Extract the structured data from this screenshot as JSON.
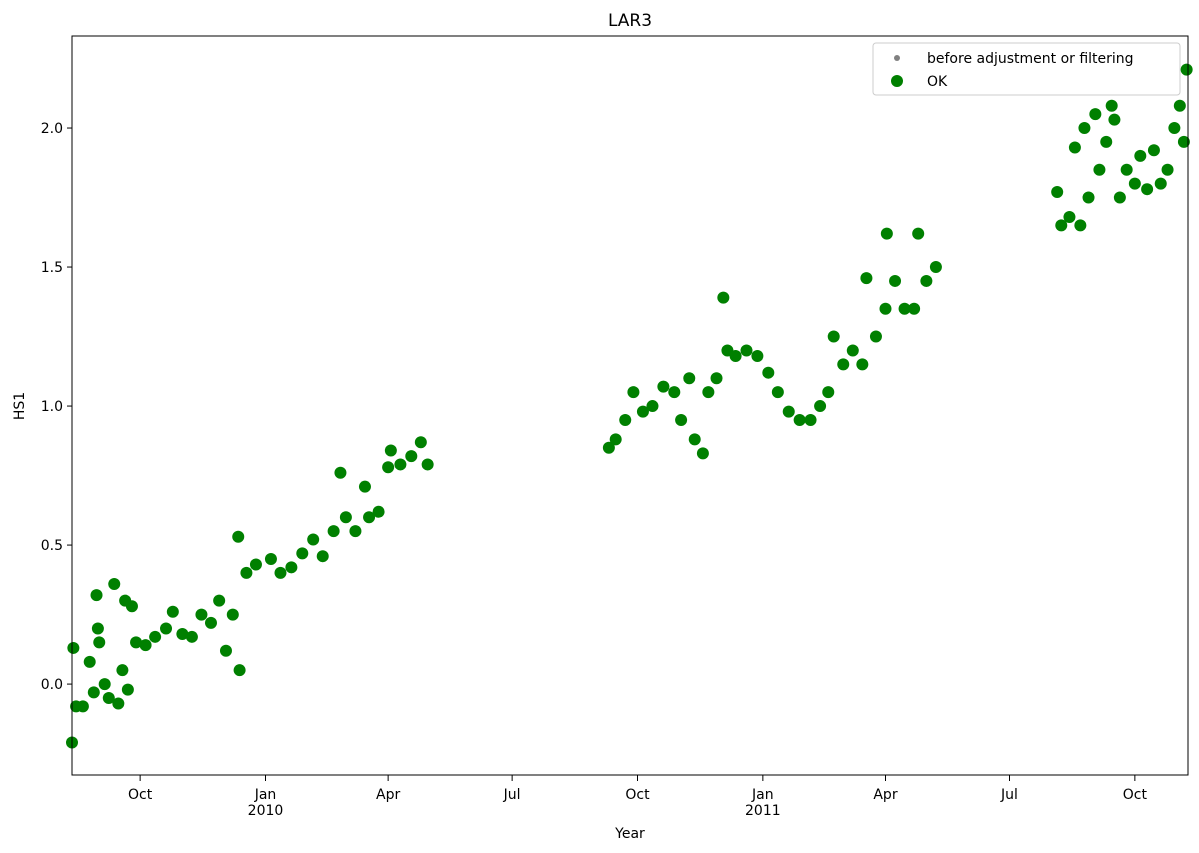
{
  "chart_data": {
    "type": "scatter",
    "title": "LAR3",
    "x_label": "Year",
    "y_label": "HS1",
    "xlim": [
      "2009-08-12",
      "2011-11-09"
    ],
    "ylim": [
      -0.327,
      2.331
    ],
    "yticks": [
      {
        "value": 0,
        "label": "0.0"
      },
      0.5,
      {
        "value": 1,
        "label": "1.0"
      },
      1.5,
      {
        "value": 2,
        "label": "2.0"
      }
    ],
    "xticks": [
      {
        "value": "2009-10-01",
        "label": "Oct"
      },
      {
        "value": "2010-01-01",
        "label": "Jan\n2010"
      },
      {
        "value": "2010-04-01",
        "label": "Apr"
      },
      {
        "value": "2010-07-01",
        "label": "Jul"
      },
      {
        "value": "2010-10-01",
        "label": "Oct"
      },
      {
        "value": "2011-01-01",
        "label": "Jan\n2011"
      },
      {
        "value": "2011-04-01",
        "label": "Apr"
      },
      {
        "value": "2011-07-01",
        "label": "Jul"
      },
      {
        "value": "2011-10-01",
        "label": "Oct"
      }
    ],
    "legend": "upper right",
    "series": [
      {
        "name": "before adjustment or filtering",
        "color": "gray",
        "x": [],
        "values": []
      },
      {
        "name": "OK",
        "color": "green",
        "x": [
          "2009-08-12",
          "2009-08-13",
          "2009-08-15",
          "2009-08-20",
          "2009-08-25",
          "2009-08-28",
          "2009-08-30",
          "2009-08-31",
          "2009-09-01",
          "2009-09-05",
          "2009-09-08",
          "2009-09-12",
          "2009-09-15",
          "2009-09-18",
          "2009-09-20",
          "2009-09-22",
          "2009-09-25",
          "2009-09-28",
          "2009-10-05",
          "2009-10-12",
          "2009-10-20",
          "2009-10-25",
          "2009-11-01",
          "2009-11-08",
          "2009-11-15",
          "2009-11-22",
          "2009-11-28",
          "2009-12-03",
          "2009-12-08",
          "2009-12-12",
          "2009-12-13",
          "2009-12-18",
          "2009-12-25",
          "2010-01-05",
          "2010-01-12",
          "2010-01-20",
          "2010-01-28",
          "2010-02-05",
          "2010-02-12",
          "2010-02-20",
          "2010-02-25",
          "2010-03-01",
          "2010-03-08",
          "2010-03-15",
          "2010-03-18",
          "2010-03-25",
          "2010-04-01",
          "2010-04-03",
          "2010-04-10",
          "2010-04-18",
          "2010-04-25",
          "2010-04-30",
          "2010-09-10",
          "2010-09-15",
          "2010-09-22",
          "2010-09-28",
          "2010-10-05",
          "2010-10-12",
          "2010-10-20",
          "2010-10-28",
          "2010-11-02",
          "2010-11-08",
          "2010-11-12",
          "2010-11-18",
          "2010-11-22",
          "2010-11-28",
          "2010-12-03",
          "2010-12-06",
          "2010-12-12",
          "2010-12-20",
          "2010-12-28",
          "2011-01-05",
          "2011-01-12",
          "2011-01-20",
          "2011-01-28",
          "2011-02-05",
          "2011-02-12",
          "2011-02-18",
          "2011-02-22",
          "2011-03-01",
          "2011-03-08",
          "2011-03-15",
          "2011-03-18",
          "2011-03-25",
          "2011-04-01",
          "2011-04-02",
          "2011-04-08",
          "2011-04-15",
          "2011-04-22",
          "2011-04-25",
          "2011-05-01",
          "2011-05-08",
          "2011-08-05",
          "2011-08-08",
          "2011-08-14",
          "2011-08-18",
          "2011-08-22",
          "2011-08-25",
          "2011-08-28",
          "2011-09-02",
          "2011-09-05",
          "2011-09-10",
          "2011-09-14",
          "2011-09-16",
          "2011-09-20",
          "2011-09-25",
          "2011-10-01",
          "2011-10-05",
          "2011-10-10",
          "2011-10-15",
          "2011-10-20",
          "2011-10-25",
          "2011-10-30",
          "2011-11-03",
          "2011-11-06",
          "2011-11-08"
        ],
        "values": [
          -0.21,
          0.13,
          -0.08,
          -0.08,
          0.08,
          -0.03,
          0.32,
          0.2,
          0.15,
          0.0,
          -0.05,
          0.36,
          -0.07,
          0.05,
          0.3,
          -0.02,
          0.28,
          0.15,
          0.14,
          0.17,
          0.2,
          0.26,
          0.18,
          0.17,
          0.25,
          0.22,
          0.3,
          0.12,
          0.25,
          0.53,
          0.05,
          0.4,
          0.43,
          0.45,
          0.4,
          0.42,
          0.47,
          0.52,
          0.46,
          0.55,
          0.76,
          0.6,
          0.55,
          0.71,
          0.6,
          0.62,
          0.78,
          0.84,
          0.79,
          0.82,
          0.87,
          0.79,
          0.85,
          0.88,
          0.95,
          1.05,
          0.98,
          1.0,
          1.07,
          1.05,
          0.95,
          1.1,
          0.88,
          0.83,
          1.05,
          1.1,
          1.39,
          1.2,
          1.18,
          1.2,
          1.18,
          1.12,
          1.05,
          0.98,
          0.95,
          0.95,
          1.0,
          1.05,
          1.25,
          1.15,
          1.2,
          1.15,
          1.46,
          1.25,
          1.35,
          1.62,
          1.45,
          1.35,
          1.35,
          1.62,
          1.45,
          1.5,
          1.77,
          1.65,
          1.68,
          1.93,
          1.65,
          2.0,
          1.75,
          2.05,
          1.85,
          1.95,
          2.08,
          2.03,
          1.75,
          1.85,
          1.8,
          1.9,
          1.78,
          1.92,
          1.8,
          1.85,
          2.0,
          2.08,
          1.95,
          2.21
        ]
      }
    ]
  }
}
